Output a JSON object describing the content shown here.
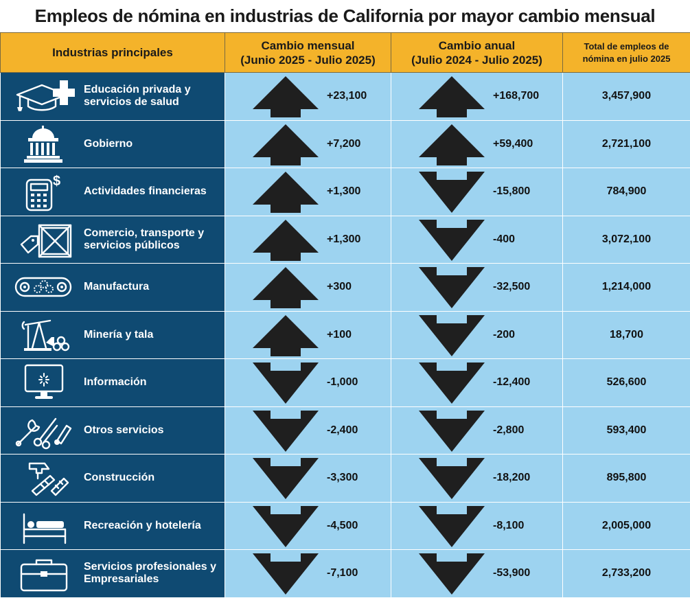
{
  "title": "Empleos de nómina en industrias de California por mayor cambio mensual",
  "headers": {
    "industry": "Industrias principales",
    "monthly_line1": "Cambio mensual",
    "monthly_line2": "(Junio 2025 - Julio 2025)",
    "annual_line1": "Cambio anual",
    "annual_line2": "(Julio 2024 - Julio 2025)",
    "total_line1": "Total de empleos de",
    "total_line2": "nómina en julio 2025"
  },
  "colors": {
    "header_bg": "#f4b32a",
    "industry_bg": "#0f4a72",
    "value_bg": "#9dd3f0",
    "arrow": "#1f1f1f"
  },
  "chart_data": {
    "type": "table",
    "title": "Empleos de nómina en industrias de California por mayor cambio mensual",
    "columns": [
      "Industrias principales",
      "Cambio mensual (Junio 2025 - Julio 2025)",
      "Cambio anual (Julio 2024 - Julio 2025)",
      "Total de empleos de nómina en julio 2025"
    ],
    "rows": [
      {
        "industry": "Educación privada y servicios de salud",
        "icon": "graduation-cap-medical-cross-icon",
        "monthly": "+23,100",
        "monthly_value": 23100,
        "annual": "+168,700",
        "annual_value": 168700,
        "total": "3,457,900",
        "total_value": 3457900
      },
      {
        "industry": "Gobierno",
        "icon": "government-building-icon",
        "monthly": "+7,200",
        "monthly_value": 7200,
        "annual": "+59,400",
        "annual_value": 59400,
        "total": "2,721,100",
        "total_value": 2721100
      },
      {
        "industry": "Actividades financieras",
        "icon": "calculator-dollar-icon",
        "monthly": "+1,300",
        "monthly_value": 1300,
        "annual": "-15,800",
        "annual_value": -15800,
        "total": "784,900",
        "total_value": 784900
      },
      {
        "industry": "Comercio, transporte y servicios públicos",
        "icon": "shipping-crate-tag-icon",
        "monthly": "+1,300",
        "monthly_value": 1300,
        "annual": "-400",
        "annual_value": -400,
        "total": "3,072,100",
        "total_value": 3072100
      },
      {
        "industry": "Manufactura",
        "icon": "conveyor-gears-icon",
        "monthly": "+300",
        "monthly_value": 300,
        "annual": "-32,500",
        "annual_value": -32500,
        "total": "1,214,000",
        "total_value": 1214000
      },
      {
        "industry": "Minería y tala",
        "icon": "oil-pump-logs-icon",
        "monthly": "+100",
        "monthly_value": 100,
        "annual": "-200",
        "annual_value": -200,
        "total": "18,700",
        "total_value": 18700
      },
      {
        "industry": "Información",
        "icon": "computer-monitor-icon",
        "monthly": "-1,000",
        "monthly_value": -1000,
        "annual": "-12,400",
        "annual_value": -12400,
        "total": "526,600",
        "total_value": 526600
      },
      {
        "industry": "Otros servicios",
        "icon": "wrench-scissors-tools-icon",
        "monthly": "-2,400",
        "monthly_value": -2400,
        "annual": "-2,800",
        "annual_value": -2800,
        "total": "593,400",
        "total_value": 593400
      },
      {
        "industry": "Construcción",
        "icon": "hammer-saw-icon",
        "monthly": "-3,300",
        "monthly_value": -3300,
        "annual": "-18,200",
        "annual_value": -18200,
        "total": "895,800",
        "total_value": 895800
      },
      {
        "industry": "Recreación y hotelería",
        "icon": "hotel-bed-icon",
        "monthly": "-4,500",
        "monthly_value": -4500,
        "annual": "-8,100",
        "annual_value": -8100,
        "total": "2,005,000",
        "total_value": 2005000
      },
      {
        "industry": "Servicios profesionales y Empresariales",
        "icon": "briefcase-icon",
        "monthly": "-7,100",
        "monthly_value": -7100,
        "annual": "-53,900",
        "annual_value": -53900,
        "total": "2,733,200",
        "total_value": 2733200
      }
    ]
  }
}
